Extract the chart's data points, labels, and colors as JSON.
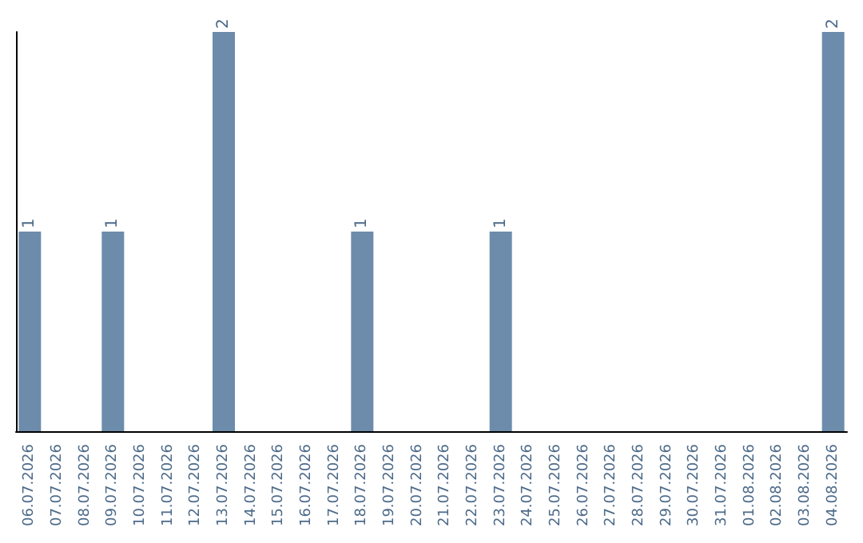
{
  "chart_data": {
    "type": "bar",
    "categories": [
      "06.07.2026",
      "07.07.2026",
      "08.07.2026",
      "09.07.2026",
      "10.07.2026",
      "11.07.2026",
      "12.07.2026",
      "13.07.2026",
      "14.07.2026",
      "15.07.2026",
      "16.07.2026",
      "17.07.2026",
      "18.07.2026",
      "19.07.2026",
      "20.07.2026",
      "21.07.2026",
      "22.07.2026",
      "23.07.2026",
      "24.07.2026",
      "25.07.2026",
      "26.07.2026",
      "27.07.2026",
      "28.07.2026",
      "29.07.2026",
      "30.07.2026",
      "31.07.2026",
      "01.08.2026",
      "02.08.2026",
      "03.08.2026",
      "04.08.2026"
    ],
    "values": [
      1,
      0,
      0,
      1,
      0,
      0,
      0,
      2,
      0,
      0,
      0,
      0,
      1,
      0,
      0,
      0,
      0,
      1,
      0,
      0,
      0,
      0,
      0,
      0,
      0,
      0,
      0,
      0,
      0,
      2
    ],
    "value_labels": [
      "1",
      null,
      null,
      "1",
      null,
      null,
      null,
      "2",
      null,
      null,
      null,
      null,
      "1",
      null,
      null,
      null,
      null,
      "1",
      null,
      null,
      null,
      null,
      null,
      null,
      null,
      null,
      null,
      null,
      null,
      "2"
    ],
    "color": "#6d8cab",
    "tick_labels": "x",
    "grid": false
  }
}
